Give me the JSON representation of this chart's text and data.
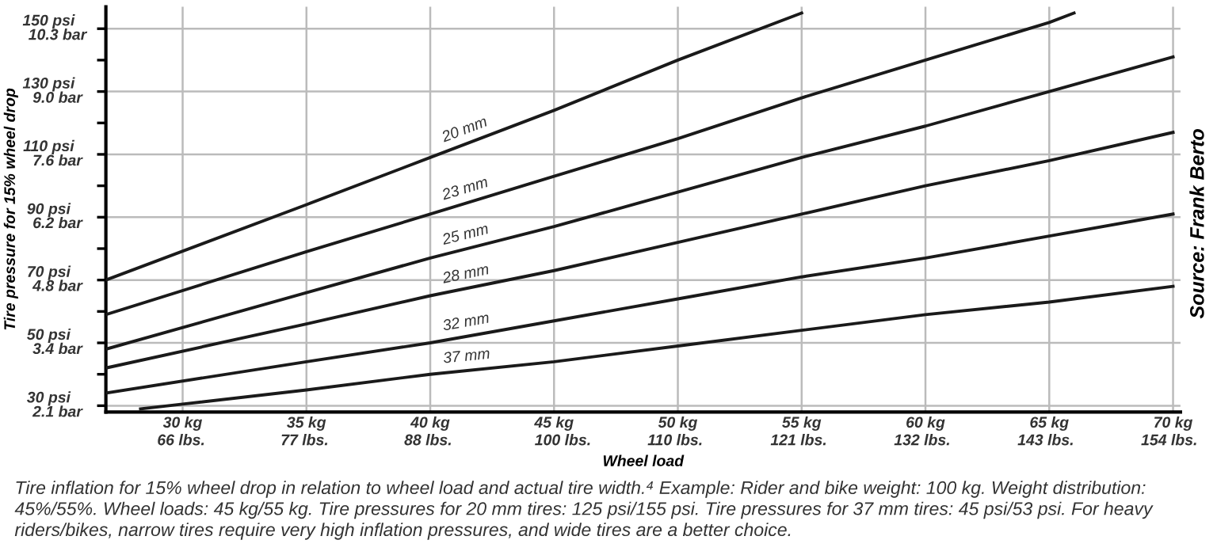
{
  "chart_data": {
    "type": "line",
    "xlabel": "Wheel load",
    "ylabel": "Tire pressure for 15% wheel drop",
    "series": [
      {
        "name": "20 mm",
        "color": "#1a1a1a",
        "x": [
          26.9,
          35,
          40,
          45,
          50,
          55
        ],
        "values": [
          70,
          94,
          109,
          124,
          140,
          155
        ]
      },
      {
        "name": "23 mm",
        "color": "#1a1a1a",
        "x": [
          26.9,
          35,
          40,
          45,
          50,
          55,
          60,
          65,
          66
        ],
        "values": [
          59,
          79,
          91,
          103,
          115,
          128,
          140,
          152,
          155
        ]
      },
      {
        "name": "25 mm",
        "color": "#1a1a1a",
        "x": [
          26.9,
          35,
          40,
          45,
          50,
          55,
          60,
          65,
          70
        ],
        "values": [
          48,
          66,
          77,
          87,
          98,
          109,
          119,
          130,
          141
        ]
      },
      {
        "name": "28 mm",
        "color": "#1a1a1a",
        "x": [
          26.9,
          35,
          40,
          45,
          50,
          55,
          60,
          65,
          70
        ],
        "values": [
          42,
          56,
          65,
          73,
          82,
          91,
          100,
          108,
          117
        ]
      },
      {
        "name": "32 mm",
        "color": "#1a1a1a",
        "x": [
          26.9,
          35,
          40,
          45,
          50,
          55,
          60,
          65,
          70
        ],
        "values": [
          34,
          44,
          50,
          57,
          64,
          71,
          77,
          84,
          91
        ]
      },
      {
        "name": "37 mm",
        "color": "#1a1a1a",
        "x": [
          28.3,
          30,
          35,
          40,
          45,
          50,
          55,
          60,
          65,
          70
        ],
        "values": [
          29,
          30.5,
          35,
          40,
          44,
          49,
          54,
          59,
          63,
          68
        ]
      }
    ],
    "xlim": [
      26.9,
      70.3
    ],
    "ylim": [
      28,
      157
    ],
    "xticks": [
      {
        "value": 30,
        "label": "30 kg"
      },
      {
        "value": 35,
        "label": "35 kg"
      },
      {
        "value": 40,
        "label": "40 kg"
      },
      {
        "value": 45,
        "label": "45 kg"
      },
      {
        "value": 50,
        "label": "50 kg"
      },
      {
        "value": 55,
        "label": "55 kg"
      },
      {
        "value": 60,
        "label": "60 kg"
      },
      {
        "value": 65,
        "label": "65 kg"
      },
      {
        "value": 70,
        "label": "70 kg"
      }
    ],
    "x2lim": [
      59.3,
      155.0
    ],
    "x2ticks": [
      {
        "value": 66,
        "label": "66 lbs."
      },
      {
        "value": 77,
        "label": "77 lbs."
      },
      {
        "value": 88,
        "label": "88 lbs."
      },
      {
        "value": 100,
        "label": "100 lbs."
      },
      {
        "value": 110,
        "label": "110 lbs."
      },
      {
        "value": 121,
        "label": "121 lbs."
      },
      {
        "value": 132,
        "label": "132 lbs."
      },
      {
        "value": 143,
        "label": "143 lbs."
      },
      {
        "value": 154,
        "label": "154 lbs."
      }
    ],
    "yticks": [
      {
        "value": 30,
        "label": "30 psi"
      },
      {
        "value": 40,
        "label": null
      },
      {
        "value": 50,
        "label": "50 psi"
      },
      {
        "value": 60,
        "label": null
      },
      {
        "value": 70,
        "label": "70 psi"
      },
      {
        "value": 80,
        "label": null
      },
      {
        "value": 90,
        "label": "90 psi"
      },
      {
        "value": 100,
        "label": null
      },
      {
        "value": 110,
        "label": "110 psi"
      },
      {
        "value": 120,
        "label": null
      },
      {
        "value": 130,
        "label": "130 psi"
      },
      {
        "value": 140,
        "label": null
      },
      {
        "value": 150,
        "label": "150 psi"
      }
    ],
    "y2lim": [
      1.93,
      10.82
    ],
    "y2ticks": [
      {
        "value": 2.07,
        "label": "2.1 bar"
      },
      {
        "value": 3.45,
        "label": "3.4 bar"
      },
      {
        "value": 4.83,
        "label": "4.8 bar"
      },
      {
        "value": 6.21,
        "label": "6.2 bar"
      },
      {
        "value": 7.58,
        "label": "7.6 bar"
      },
      {
        "value": 8.96,
        "label": "9.0 bar"
      },
      {
        "value": 10.34,
        "label": "10.3 bar"
      }
    ],
    "grid": true,
    "legend": false,
    "marker": "none",
    "line_style": "solid",
    "annotations": [
      "Source: Frank Berto",
      "Tire inflation for 15% wheel drop in relation to wheel load and actual tire width.⁴ Example: Rider and bike weight: 100 kg. Weight distribution: 45%/55%. Wheel loads: 45 kg/55 kg. Tire pressures for 20 mm tires: 125 psi/155 psi. Tire pressures for 37 mm tires: 45 psi/53 psi. For heavy riders/bikes, narrow tires require very high inflation pressures, and wide tires are a better choice."
    ]
  }
}
